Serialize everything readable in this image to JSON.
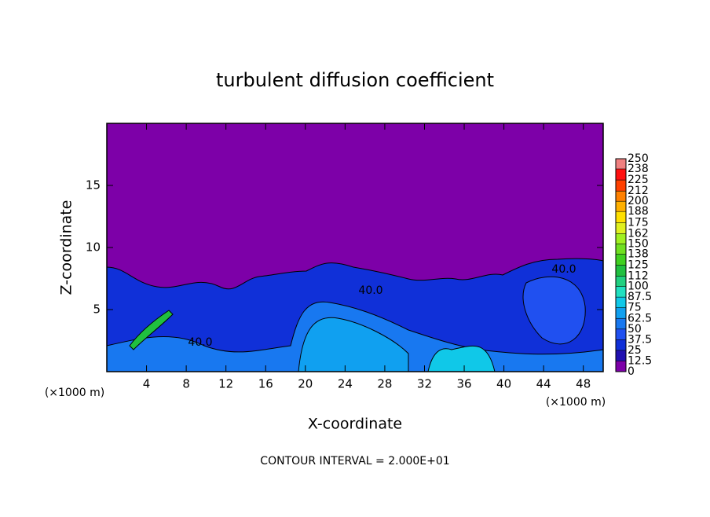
{
  "chart_data": {
    "type": "contour",
    "title": "turbulent diffusion coefficient",
    "xlabel": "X-coordinate",
    "ylabel": "Z-coordinate",
    "x_unit_label": "(×1000 m)",
    "y_unit_label": "(×1000 m)",
    "xlim": [
      0,
      50
    ],
    "xticks": [
      4,
      8,
      12,
      16,
      20,
      24,
      28,
      32,
      36,
      40,
      44,
      48
    ],
    "ylim": [
      0,
      20
    ],
    "yticks": [
      5,
      10,
      15
    ],
    "contour_labels": [
      "40.0",
      "40.0",
      "40.0"
    ],
    "footnote": "CONTOUR INTERVAL = 2.000E+01",
    "colorbar": {
      "levels": [
        0,
        12.5,
        25,
        37.5,
        50,
        62.5,
        75,
        87.5,
        100,
        112,
        125,
        138,
        150,
        162,
        175,
        188,
        200,
        212,
        225,
        238,
        250
      ],
      "colors": [
        "#7d00a8",
        "#2010b0",
        "#1030d8",
        "#2050f0",
        "#1878f0",
        "#10a0f0",
        "#10c8e8",
        "#20e0c0",
        "#20d080",
        "#20c040",
        "#40d020",
        "#70e020",
        "#a0f020",
        "#e0f020",
        "#ffe000",
        "#ffb000",
        "#ff8000",
        "#ff4000",
        "#ff1010",
        "#f08080"
      ]
    }
  }
}
